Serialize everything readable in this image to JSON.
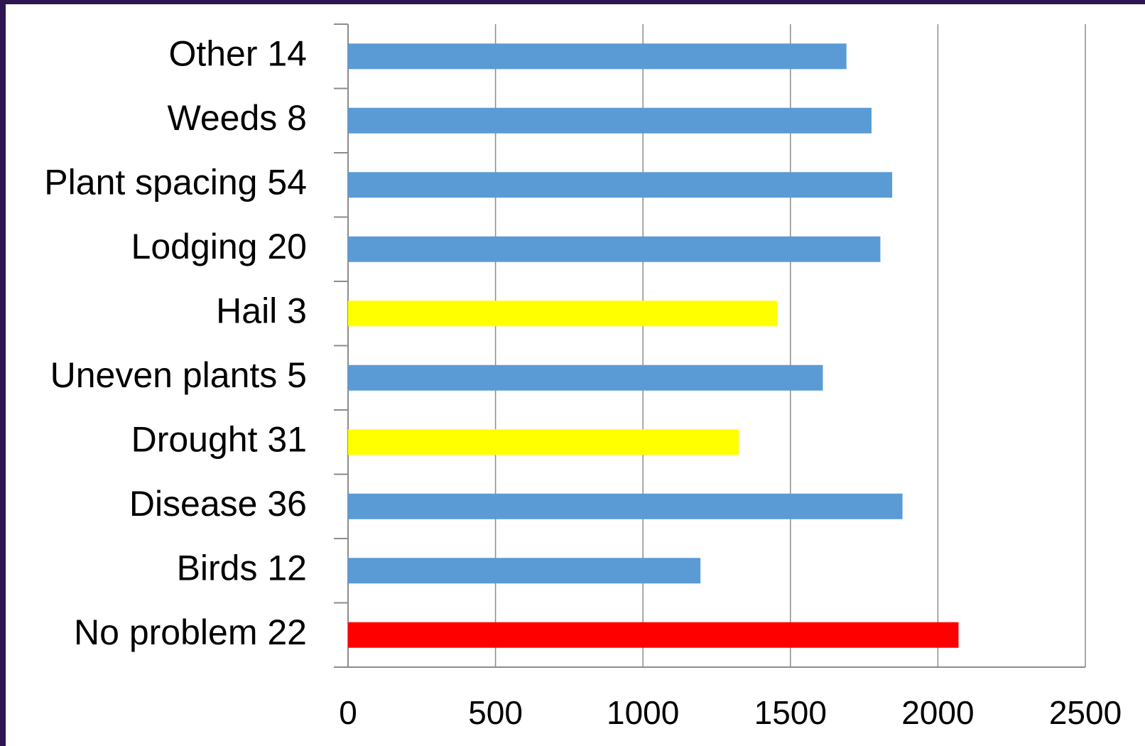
{
  "chart_data": {
    "type": "hbar",
    "categories": [
      "Other 14",
      "Weeds 8",
      "Plant spacing 54",
      "Lodging 20",
      "Hail 3",
      "Uneven plants 5",
      "Drought 31",
      "Disease 36",
      "Birds 12",
      "No problem 22"
    ],
    "values": [
      1690,
      1775,
      1845,
      1805,
      1455,
      1610,
      1325,
      1880,
      1195,
      2070
    ],
    "colors": [
      "#5b9bd5",
      "#5b9bd5",
      "#5b9bd5",
      "#5b9bd5",
      "#ffff00",
      "#5b9bd5",
      "#ffff00",
      "#5b9bd5",
      "#5b9bd5",
      "#ff0000"
    ],
    "xlim": [
      0,
      2500
    ],
    "xticks": [
      0,
      500,
      1000,
      1500,
      2000,
      2500
    ],
    "grid": true
  }
}
